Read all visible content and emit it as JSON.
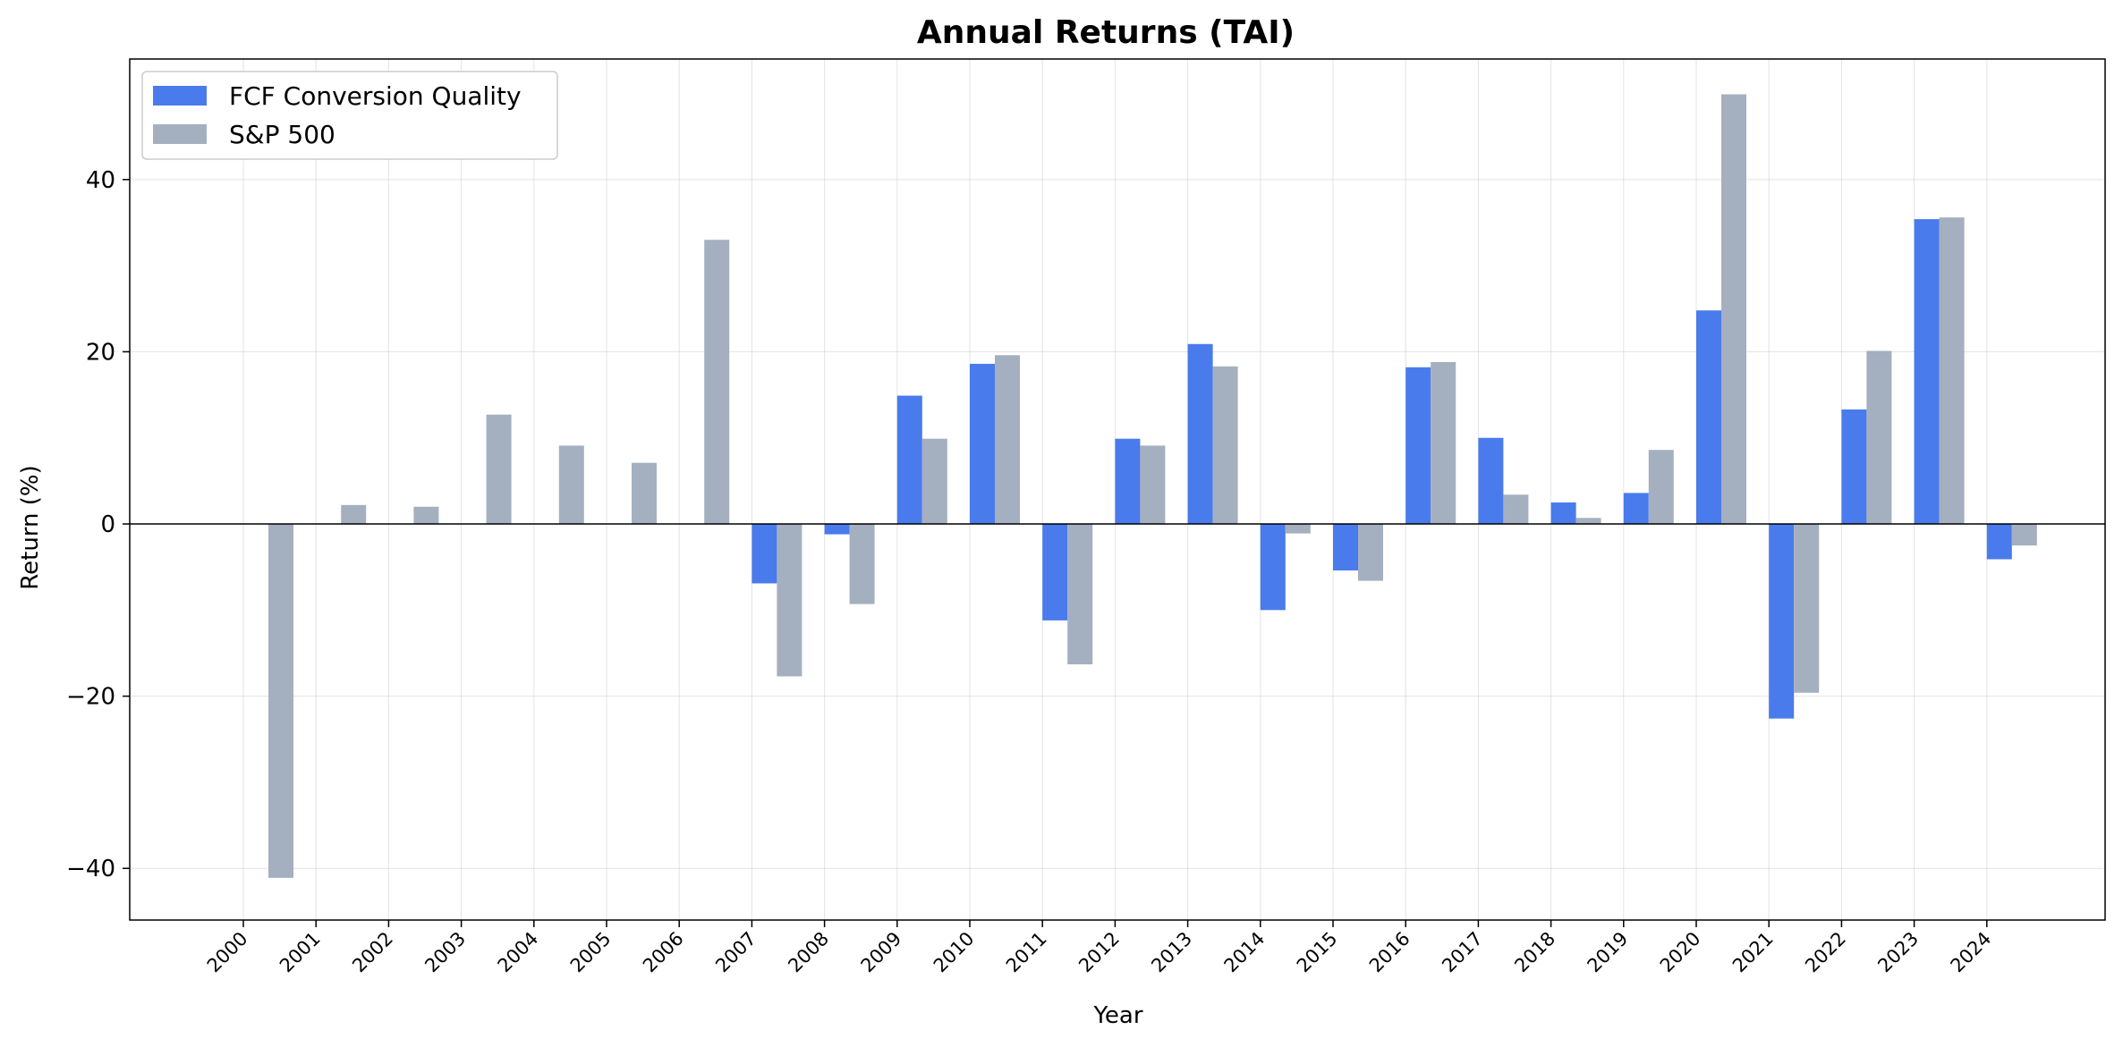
{
  "chart_data": {
    "type": "bar",
    "title": "Annual Returns (TAI)",
    "xlabel": "Year",
    "ylabel": "Return (%)",
    "ylim": [
      -46,
      54
    ],
    "yticks": [
      -40,
      -20,
      0,
      20,
      40
    ],
    "ytick_labels": [
      "−40",
      "−20",
      "0",
      "20",
      "40"
    ],
    "grid": true,
    "legend_position": "top-left",
    "categories": [
      "2000",
      "2001",
      "2002",
      "2003",
      "2004",
      "2005",
      "2006",
      "2007",
      "2008",
      "2009",
      "2010",
      "2011",
      "2012",
      "2013",
      "2014",
      "2015",
      "2016",
      "2017",
      "2018",
      "2019",
      "2020",
      "2021",
      "2022",
      "2023",
      "2024"
    ],
    "series": [
      {
        "name": "FCF Conversion Quality",
        "color": "#4a7bec",
        "values": [
          null,
          null,
          null,
          null,
          null,
          null,
          null,
          -6.9,
          -1.2,
          14.9,
          18.6,
          -11.2,
          9.9,
          20.9,
          -10.0,
          -5.4,
          18.2,
          10.0,
          2.5,
          3.6,
          24.8,
          -22.6,
          13.3,
          35.4,
          -4.1
        ]
      },
      {
        "name": "S&P 500",
        "color": "#a4b0c0",
        "values": [
          -41.1,
          2.2,
          2.0,
          12.7,
          9.1,
          7.1,
          33.0,
          -17.7,
          -9.3,
          9.9,
          19.6,
          -16.3,
          9.1,
          18.3,
          -1.1,
          -6.6,
          18.8,
          3.4,
          0.7,
          8.6,
          49.9,
          -19.6,
          20.1,
          35.6,
          -2.5
        ]
      }
    ]
  }
}
